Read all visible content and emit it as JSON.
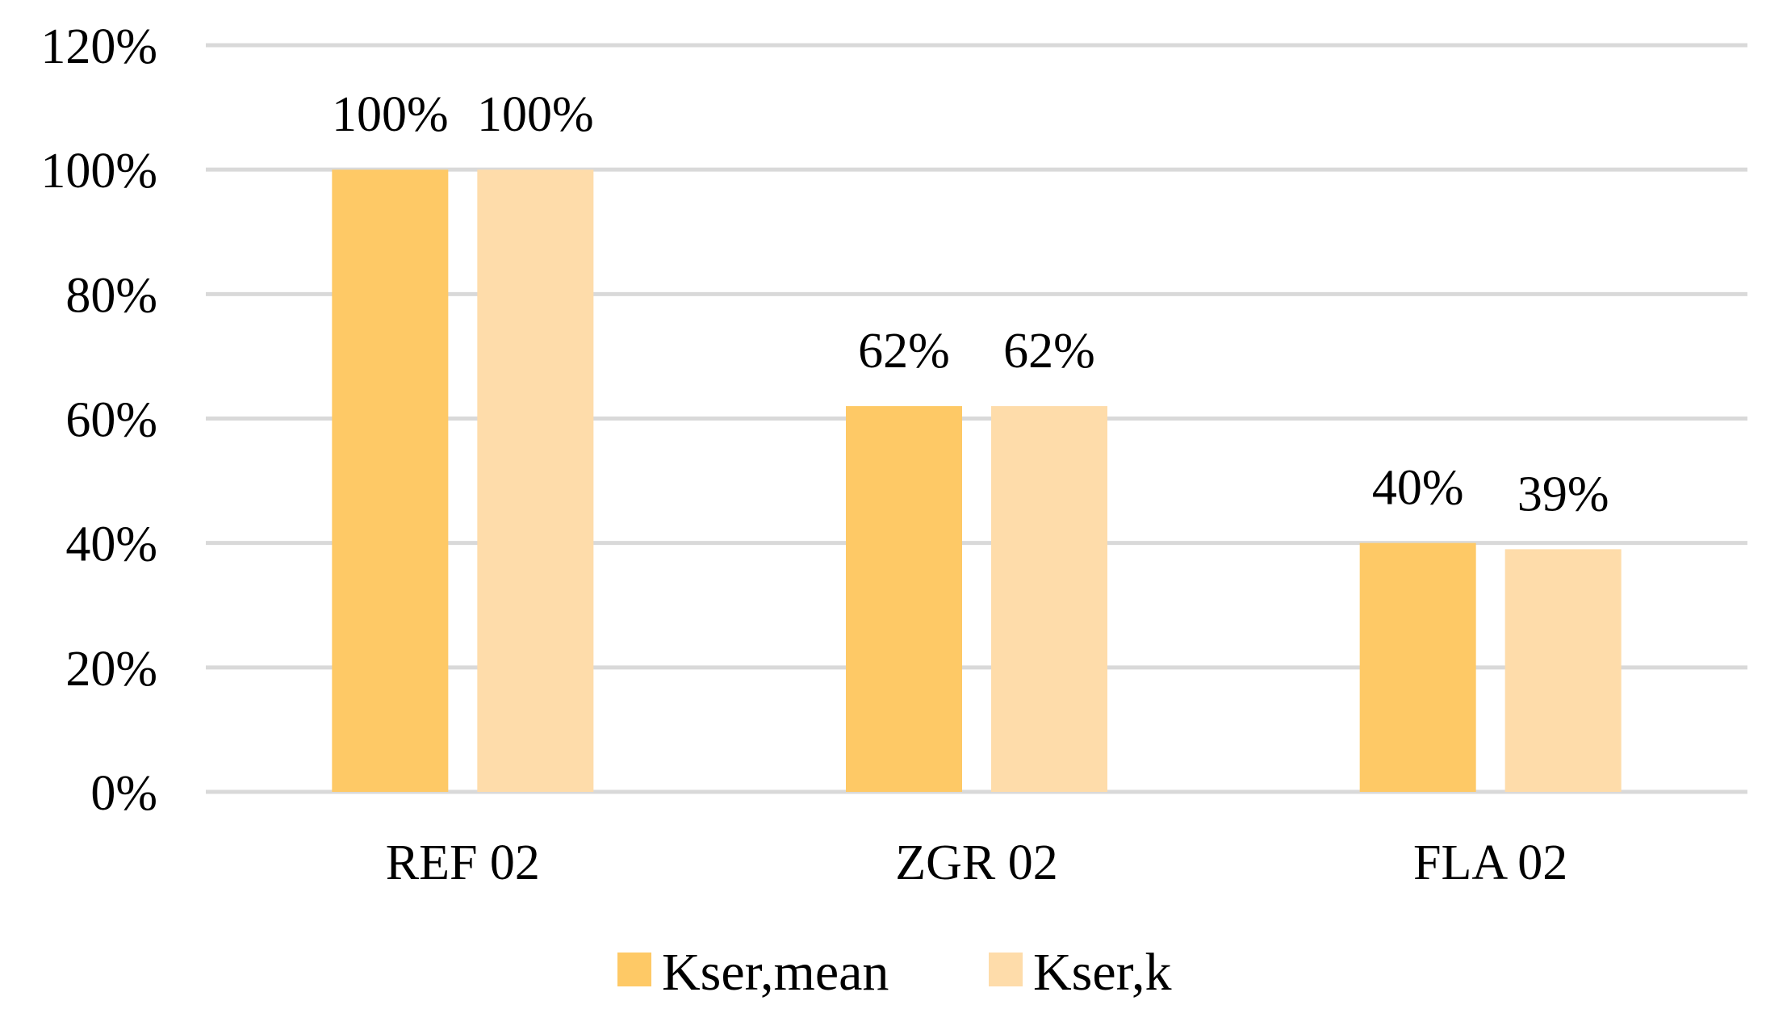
{
  "chart_data": {
    "type": "bar",
    "title": "",
    "xlabel": "",
    "ylabel": "",
    "categories": [
      "REF 02",
      "ZGR 02",
      "FLA 02"
    ],
    "series": [
      {
        "name": "Kser,mean",
        "color": "#fec966",
        "values": [
          100,
          62,
          40
        ],
        "labels": [
          "100%",
          "62%",
          "40%"
        ]
      },
      {
        "name": "Kser,k",
        "color": "#fedcaa",
        "values": [
          100,
          62,
          39
        ],
        "labels": [
          "100%",
          "62%",
          "39%"
        ]
      }
    ],
    "ylim": [
      0,
      120
    ],
    "yticks": [
      0,
      20,
      40,
      60,
      80,
      100,
      120
    ],
    "ytick_labels": [
      "0%",
      "20%",
      "40%",
      "60%",
      "80%",
      "100%",
      "120%"
    ],
    "grid": true,
    "legend_position": "bottom"
  }
}
